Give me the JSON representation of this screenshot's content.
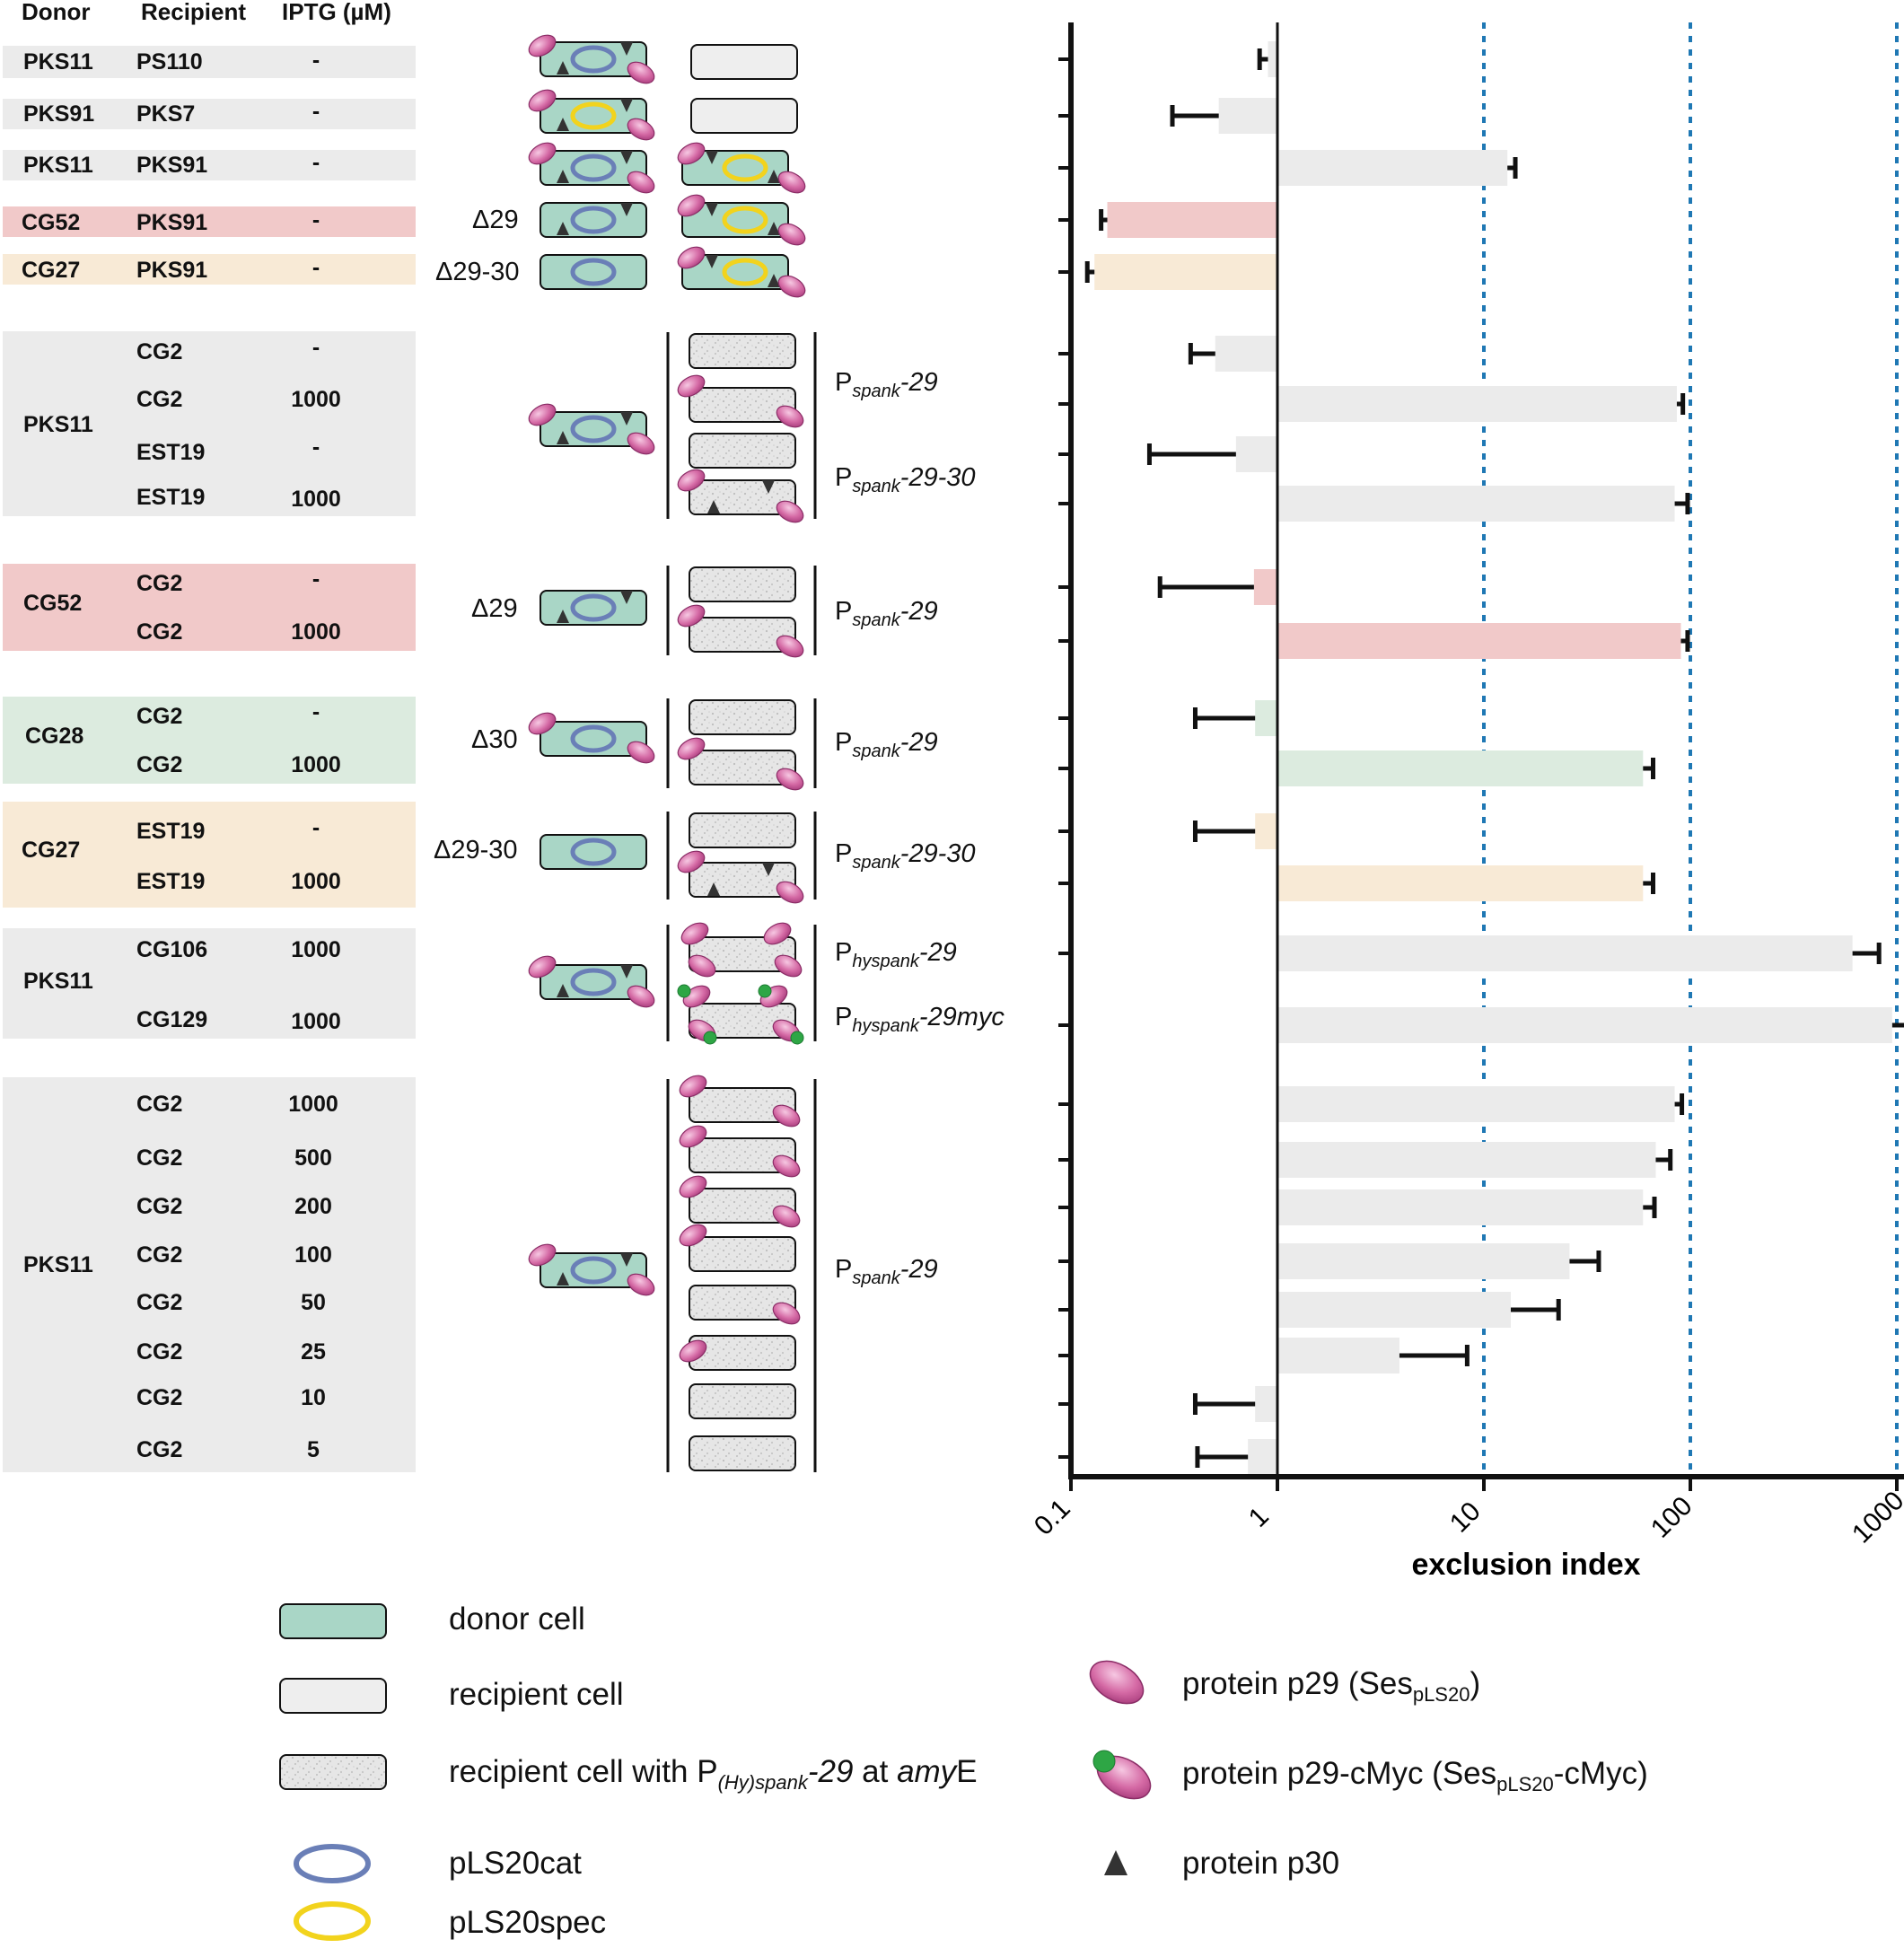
{
  "columns": {
    "donor": "Donor",
    "recipient": "Recipient",
    "iptg": "IPTG (µM)"
  },
  "colors": {
    "grey": "#ebebeb",
    "pink": "#f1c9c9",
    "green": "#dcebdf",
    "peach": "#f8ead6",
    "donor_cell": "#a9d6c6",
    "recipient_cell": "#eeeeee",
    "p29": "#d56aa5",
    "cmyc": "#2ea645",
    "p30": "#333333",
    "cat_ring": "#6a7fb7",
    "spec_ring": "#f2d31d",
    "guide": "#1f78b4"
  },
  "rows": {
    "r1": {
      "donor": "PKS11",
      "recipient": "PS110",
      "iptg": "-"
    },
    "r2": {
      "donor": "PKS91",
      "recipient": "PKS7",
      "iptg": "-"
    },
    "r3": {
      "donor": "PKS11",
      "recipient": "PKS91",
      "iptg": "-"
    },
    "r4": {
      "donor": "CG52",
      "recipient": "PKS91",
      "iptg": "-"
    },
    "r5": {
      "donor": "CG27",
      "recipient": "PKS91",
      "iptg": "-"
    },
    "g1": {
      "donor": "PKS11",
      "recipients": [
        "CG2",
        "CG2",
        "EST19",
        "EST19"
      ],
      "iptg": [
        "-",
        "1000",
        "-",
        "1000"
      ]
    },
    "g2": {
      "donor": "CG52",
      "recipients": [
        "CG2",
        "CG2"
      ],
      "iptg": [
        "-",
        "1000"
      ]
    },
    "g3": {
      "donor": "CG28",
      "recipients": [
        "CG2",
        "CG2"
      ],
      "iptg": [
        "-",
        "1000"
      ]
    },
    "g4": {
      "donor": "CG27",
      "recipients": [
        "EST19",
        "EST19"
      ],
      "iptg": [
        "-",
        "1000"
      ]
    },
    "g5": {
      "donor": "PKS11",
      "recipients": [
        "CG106",
        "CG129"
      ],
      "iptg": [
        "1000",
        "1000"
      ]
    },
    "g6": {
      "donor": "PKS11",
      "recipients": [
        "CG2",
        "CG2",
        "CG2",
        "CG2",
        "CG2",
        "CG2",
        "CG2",
        "CG2"
      ],
      "iptg": [
        "1000",
        "500",
        "200",
        "100",
        "50",
        "25",
        "10",
        "5"
      ]
    }
  },
  "deletions": {
    "d29": "Δ29",
    "d2930": "Δ29-30",
    "d30": "Δ30"
  },
  "promoters": {
    "pspank": "P",
    "sub_spank": "spank",
    "sub_hyspank": "hyspank",
    "s29": "-29",
    "s2930": "-29-30",
    "s29myc": "-29myc"
  },
  "legend": {
    "donor_cell": "donor cell",
    "recipient_cell": "recipient cell",
    "recipient_amye_pre": "recipient cell with P",
    "recipient_amye_sub": "(Hy)spank",
    "recipient_amye_mid": "-29",
    "recipient_amye_at": " at ",
    "recipient_amye_gene": "amy",
    "recipient_amye_end": "E",
    "pls20cat": "pLS20cat",
    "pls20spec": "pLS20spec",
    "p29_pre": "protein p29 (Ses",
    "p29_sub": "pLS20",
    "p29_end": ")",
    "cmyc_pre": "protein p29-cMyc (Ses",
    "cmyc_sub": "pLS20",
    "cmyc_end": "-cMyc)",
    "p30": "protein p30"
  },
  "chart_data": {
    "type": "bar",
    "orientation": "horizontal",
    "xscale": "log",
    "xlim": [
      0.1,
      1500
    ],
    "xlabel": "exclusion index",
    "xticks": [
      "0.1",
      "1",
      "10",
      "100",
      "1000"
    ],
    "tick_values": [
      0.1,
      1,
      10,
      100,
      1000
    ],
    "reference_lines": [
      10,
      100,
      1000
    ],
    "baseline": 1,
    "bars": [
      {
        "label": "PKS11 → PS110",
        "value": 0.9,
        "err_low": 0.82,
        "color": "grey"
      },
      {
        "label": "PKS91 → PKS7",
        "value": 0.52,
        "err_low": 0.31,
        "color": "grey"
      },
      {
        "label": "PKS11 → PKS91",
        "value": 13,
        "err_high": 14.2,
        "color": "grey"
      },
      {
        "label": "CG52 → PKS91",
        "value": 0.15,
        "err_low": 0.14,
        "color": "pink"
      },
      {
        "label": "CG27 → PKS91",
        "value": 0.13,
        "err_low": 0.12,
        "color": "peach"
      },
      {
        "label": "PKS11 → CG2, IPTG -",
        "value": 0.5,
        "err_low": 0.38,
        "color": "grey"
      },
      {
        "label": "PKS11 → CG2, IPTG 1000",
        "value": 86,
        "err_high": 92,
        "color": "grey"
      },
      {
        "label": "PKS11 → EST19, IPTG -",
        "value": 0.63,
        "err_low": 0.24,
        "color": "grey"
      },
      {
        "label": "PKS11 → EST19, IPTG 1000",
        "value": 84,
        "err_high": 97,
        "color": "grey"
      },
      {
        "label": "CG52 → CG2, IPTG -",
        "value": 0.77,
        "err_low": 0.27,
        "color": "pink"
      },
      {
        "label": "CG52 → CG2, IPTG 1000",
        "value": 90,
        "err_high": 97,
        "color": "pink"
      },
      {
        "label": "CG28 → CG2, IPTG -",
        "value": 0.78,
        "err_low": 0.4,
        "color": "green"
      },
      {
        "label": "CG28 → CG2, IPTG 1000",
        "value": 59,
        "err_high": 66,
        "color": "green"
      },
      {
        "label": "CG27 → EST19, IPTG -",
        "value": 0.78,
        "err_low": 0.4,
        "color": "peach"
      },
      {
        "label": "CG27 → EST19, IPTG 1000",
        "value": 59,
        "err_high": 66,
        "color": "peach"
      },
      {
        "label": "PKS11 → CG106, IPTG 1000",
        "value": 610,
        "err_high": 820,
        "color": "grey"
      },
      {
        "label": "PKS11 → CG129, IPTG 1000",
        "value": 950,
        "err_high": 1200,
        "color": "grey"
      },
      {
        "label": "PKS11 → CG2, IPTG 1000 (titration)",
        "value": 84,
        "err_high": 91,
        "color": "grey"
      },
      {
        "label": "PKS11 → CG2, IPTG 500",
        "value": 68,
        "err_high": 80,
        "color": "grey"
      },
      {
        "label": "PKS11 → CG2, IPTG 200",
        "value": 59,
        "err_high": 67,
        "color": "grey"
      },
      {
        "label": "PKS11 → CG2, IPTG 100",
        "value": 26,
        "err_high": 36,
        "color": "grey"
      },
      {
        "label": "PKS11 → CG2, IPTG 50",
        "value": 13.5,
        "err_high": 23,
        "color": "grey"
      },
      {
        "label": "PKS11 → CG2, IPTG 25",
        "value": 3.9,
        "err_high": 8.3,
        "color": "grey"
      },
      {
        "label": "PKS11 → CG2, IPTG 10",
        "value": 0.78,
        "err_low": 0.4,
        "color": "grey"
      },
      {
        "label": "PKS11 → CG2, IPTG 5",
        "value": 0.72,
        "err_low": 0.41,
        "color": "grey"
      }
    ]
  }
}
